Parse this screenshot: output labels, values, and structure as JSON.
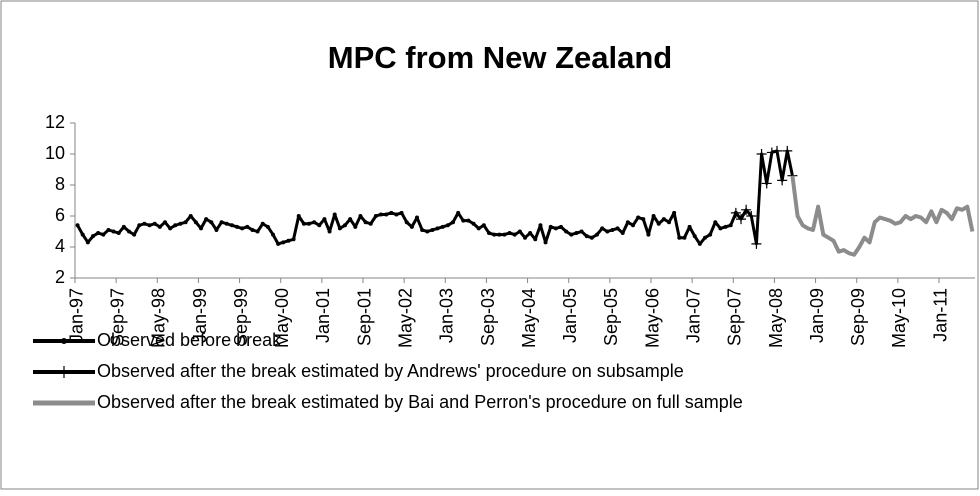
{
  "chart_data": {
    "type": "line",
    "title": "MPC from New Zealand",
    "categories": [
      "Jan-97",
      null,
      null,
      null,
      null,
      null,
      null,
      null,
      "Sep-97",
      null,
      null,
      null,
      null,
      null,
      null,
      null,
      "May-98",
      null,
      null,
      null,
      null,
      null,
      null,
      null,
      "Jan-99",
      null,
      null,
      null,
      null,
      null,
      null,
      null,
      "Sep-99",
      null,
      null,
      null,
      null,
      null,
      null,
      null,
      "May-00",
      null,
      null,
      null,
      null,
      null,
      null,
      null,
      "Jan-01",
      null,
      null,
      null,
      null,
      null,
      null,
      null,
      "Sep-01",
      null,
      null,
      null,
      null,
      null,
      null,
      null,
      "May-02",
      null,
      null,
      null,
      null,
      null,
      null,
      null,
      "Jan-03",
      null,
      null,
      null,
      null,
      null,
      null,
      null,
      "Sep-03",
      null,
      null,
      null,
      null,
      null,
      null,
      null,
      "May-04",
      null,
      null,
      null,
      null,
      null,
      null,
      null,
      "Jan-05",
      null,
      null,
      null,
      null,
      null,
      null,
      null,
      "Sep-05",
      null,
      null,
      null,
      null,
      null,
      null,
      null,
      "May-06",
      null,
      null,
      null,
      null,
      null,
      null,
      null,
      "Jan-07",
      null,
      null,
      null,
      null,
      null,
      null,
      null,
      "Sep-07",
      null,
      null,
      null,
      null,
      null,
      null,
      null,
      "May-08",
      null,
      null,
      null,
      null,
      null,
      null,
      null,
      "Jan-09",
      null,
      null,
      null,
      null,
      null,
      null,
      null,
      "Sep-09",
      null,
      null,
      null,
      null,
      null,
      null,
      null,
      "May-10",
      null,
      null,
      null,
      null,
      null,
      null,
      null,
      "Jan-11",
      null,
      null,
      null,
      null,
      null,
      null
    ],
    "series": [
      {
        "name": "Observed before break",
        "color": "#000000",
        "marker": "dot",
        "values": [
          5.4,
          4.8,
          4.3,
          4.7,
          4.9,
          4.8,
          5.1,
          5.0,
          4.9,
          5.3,
          5.0,
          4.8,
          5.4,
          5.5,
          5.4,
          5.5,
          5.3,
          5.6,
          5.2,
          5.4,
          5.5,
          5.6,
          6.0,
          5.6,
          5.2,
          5.8,
          5.6,
          5.1,
          5.6,
          5.5,
          5.4,
          5.3,
          5.2,
          5.3,
          5.1,
          5.0,
          5.5,
          5.3,
          4.8,
          4.2,
          4.3,
          4.4,
          4.5,
          6.0,
          5.5,
          5.5,
          5.6,
          5.4,
          5.8,
          5.0,
          6.1,
          5.2,
          5.4,
          5.8,
          5.3,
          6.0,
          5.6,
          5.5,
          6.0,
          6.1,
          6.1,
          6.2,
          6.1,
          6.2,
          5.6,
          5.3,
          5.9,
          5.1,
          5.0,
          5.1,
          5.2,
          5.3,
          5.4,
          5.6,
          6.2,
          5.7,
          5.7,
          5.5,
          5.2,
          5.4,
          4.9,
          4.8,
          4.8,
          4.8,
          4.9,
          4.8,
          5.0,
          4.6,
          4.9,
          4.5,
          5.4,
          4.3,
          5.3,
          5.2,
          5.3,
          5.0,
          4.8,
          4.9,
          5.0,
          4.7,
          4.6,
          4.8,
          5.2,
          5.0,
          5.1,
          5.2,
          4.9,
          5.6,
          5.4,
          5.9,
          5.8,
          4.8,
          6.0,
          5.5,
          5.8,
          5.6,
          6.2,
          4.6,
          4.6,
          5.3,
          4.7,
          4.2,
          4.6,
          4.8,
          5.6,
          5.2,
          5.3,
          5.4,
          6.2,
          null,
          null,
          null,
          null,
          null,
          null,
          null,
          null,
          null,
          null,
          null,
          null,
          null,
          null,
          null,
          null,
          null,
          null,
          null,
          null,
          null,
          null,
          null,
          null,
          null,
          null,
          null,
          null,
          null,
          null,
          null,
          null,
          null,
          null,
          null,
          null,
          null,
          null,
          null,
          null,
          null,
          null,
          null,
          null,
          null,
          null
        ]
      },
      {
        "name": "Observed after the break estimated by Andrews' procedure on subsample",
        "color": "#000000",
        "marker": "plus",
        "values": [
          null,
          null,
          null,
          null,
          null,
          null,
          null,
          null,
          null,
          null,
          null,
          null,
          null,
          null,
          null,
          null,
          null,
          null,
          null,
          null,
          null,
          null,
          null,
          null,
          null,
          null,
          null,
          null,
          null,
          null,
          null,
          null,
          null,
          null,
          null,
          null,
          null,
          null,
          null,
          null,
          null,
          null,
          null,
          null,
          null,
          null,
          null,
          null,
          null,
          null,
          null,
          null,
          null,
          null,
          null,
          null,
          null,
          null,
          null,
          null,
          null,
          null,
          null,
          null,
          null,
          null,
          null,
          null,
          null,
          null,
          null,
          null,
          null,
          null,
          null,
          null,
          null,
          null,
          null,
          null,
          null,
          null,
          null,
          null,
          null,
          null,
          null,
          null,
          null,
          null,
          null,
          null,
          null,
          null,
          null,
          null,
          null,
          null,
          null,
          null,
          null,
          null,
          null,
          null,
          null,
          null,
          null,
          null,
          null,
          null,
          null,
          null,
          null,
          null,
          null,
          null,
          null,
          null,
          null,
          null,
          null,
          null,
          null,
          null,
          null,
          null,
          null,
          null,
          6.2,
          5.8,
          6.4,
          6.0,
          4.2,
          10.0,
          8.1,
          10.1,
          10.2,
          8.3,
          10.2,
          8.6,
          null,
          null,
          null,
          null,
          null,
          null,
          null,
          null,
          null,
          null,
          null,
          null,
          null,
          null,
          null,
          null,
          null,
          null,
          null,
          null,
          null,
          null,
          null,
          null,
          null,
          null,
          null,
          null,
          null,
          null,
          null,
          null,
          null,
          null,
          null
        ]
      },
      {
        "name": "Observed after the break estimated by Bai and Perron's procedure on full sample",
        "color": "#8c8c8c",
        "marker": "none",
        "values": [
          null,
          null,
          null,
          null,
          null,
          null,
          null,
          null,
          null,
          null,
          null,
          null,
          null,
          null,
          null,
          null,
          null,
          null,
          null,
          null,
          null,
          null,
          null,
          null,
          null,
          null,
          null,
          null,
          null,
          null,
          null,
          null,
          null,
          null,
          null,
          null,
          null,
          null,
          null,
          null,
          null,
          null,
          null,
          null,
          null,
          null,
          null,
          null,
          null,
          null,
          null,
          null,
          null,
          null,
          null,
          null,
          null,
          null,
          null,
          null,
          null,
          null,
          null,
          null,
          null,
          null,
          null,
          null,
          null,
          null,
          null,
          null,
          null,
          null,
          null,
          null,
          null,
          null,
          null,
          null,
          null,
          null,
          null,
          null,
          null,
          null,
          null,
          null,
          null,
          null,
          null,
          null,
          null,
          null,
          null,
          null,
          null,
          null,
          null,
          null,
          null,
          null,
          null,
          null,
          null,
          null,
          null,
          null,
          null,
          null,
          null,
          null,
          null,
          null,
          null,
          null,
          null,
          null,
          null,
          null,
          null,
          null,
          null,
          null,
          null,
          null,
          null,
          null,
          null,
          null,
          null,
          null,
          null,
          null,
          null,
          null,
          null,
          null,
          null,
          8.6,
          6.0,
          5.4,
          5.2,
          5.1,
          6.6,
          4.8,
          4.6,
          4.4,
          3.7,
          3.8,
          3.6,
          3.5,
          4.0,
          4.6,
          4.3,
          5.6,
          5.9,
          5.8,
          5.7,
          5.5,
          5.6,
          6.0,
          5.8,
          6.0,
          5.9,
          5.6,
          6.3,
          5.6,
          6.4,
          6.2,
          5.8,
          6.5,
          6.4,
          6.6,
          5.0
        ]
      }
    ],
    "ylim": [
      2,
      12
    ],
    "yticks": [
      2,
      4,
      6,
      8,
      10,
      12
    ],
    "grid": false,
    "legend": "bottom"
  }
}
